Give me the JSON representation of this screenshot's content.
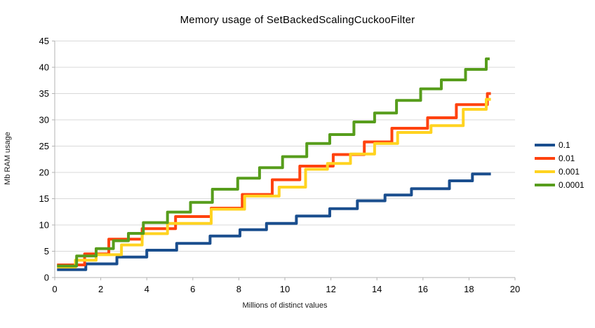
{
  "title": "Memory usage of SetBackedScalingCuckooFilter",
  "chart_data": {
    "type": "line",
    "line_style": "step",
    "title": "Memory usage of SetBackedScalingCuckooFilter",
    "xlabel": "Millions of distinct values",
    "ylabel": "Mb RAM usage",
    "xlim": [
      0,
      20
    ],
    "ylim": [
      0,
      45
    ],
    "xticks": [
      0,
      2,
      4,
      6,
      8,
      10,
      12,
      14,
      16,
      18,
      20
    ],
    "yticks": [
      0,
      5,
      10,
      15,
      20,
      25,
      30,
      35,
      40,
      45
    ],
    "grid": "horizontal",
    "grid_color": "#d9d9d9",
    "axis_color": "#b3b3b3",
    "legend_position": "right",
    "series": [
      {
        "name": "0.1",
        "color": "#1a4e8e",
        "x_end": 18.95,
        "points": [
          [
            0.1,
            1.5
          ],
          [
            1.35,
            2.6
          ],
          [
            2.7,
            3.9
          ],
          [
            4.0,
            5.2
          ],
          [
            5.3,
            6.5
          ],
          [
            6.75,
            7.9
          ],
          [
            8.05,
            9.1
          ],
          [
            9.2,
            10.3
          ],
          [
            10.5,
            11.7
          ],
          [
            11.95,
            13.1
          ],
          [
            13.15,
            14.6
          ],
          [
            14.35,
            15.7
          ],
          [
            15.5,
            16.9
          ],
          [
            17.15,
            18.4
          ],
          [
            18.15,
            19.7
          ]
        ]
      },
      {
        "name": "0.01",
        "color": "#ff420e",
        "x_end": 18.95,
        "points": [
          [
            0.1,
            2.4
          ],
          [
            1.3,
            4.5
          ],
          [
            2.35,
            7.3
          ],
          [
            3.8,
            9.3
          ],
          [
            5.25,
            11.6
          ],
          [
            6.8,
            13.2
          ],
          [
            8.15,
            15.8
          ],
          [
            9.45,
            18.6
          ],
          [
            10.65,
            21.2
          ],
          [
            12.1,
            23.4
          ],
          [
            13.45,
            25.8
          ],
          [
            14.65,
            28.4
          ],
          [
            16.2,
            30.4
          ],
          [
            17.45,
            32.9
          ],
          [
            18.8,
            35.0
          ]
        ]
      },
      {
        "name": "0.001",
        "color": "#ffd320",
        "x_end": 18.95,
        "points": [
          [
            0.1,
            2.0
          ],
          [
            0.9,
            3.3
          ],
          [
            1.8,
            4.35
          ],
          [
            2.9,
            6.2
          ],
          [
            3.8,
            8.35
          ],
          [
            4.9,
            10.3
          ],
          [
            6.8,
            13.0
          ],
          [
            8.25,
            15.5
          ],
          [
            9.75,
            17.2
          ],
          [
            10.9,
            20.6
          ],
          [
            11.85,
            21.7
          ],
          [
            12.85,
            23.5
          ],
          [
            13.9,
            25.5
          ],
          [
            14.9,
            27.6
          ],
          [
            16.35,
            28.9
          ],
          [
            17.75,
            32.0
          ],
          [
            18.75,
            33.9
          ]
        ]
      },
      {
        "name": "0.0001",
        "color": "#579d1c",
        "x_end": 18.9,
        "points": [
          [
            0.1,
            2.2
          ],
          [
            0.95,
            4.1
          ],
          [
            1.8,
            5.5
          ],
          [
            2.55,
            7.0
          ],
          [
            3.2,
            8.4
          ],
          [
            3.85,
            10.45
          ],
          [
            4.9,
            12.45
          ],
          [
            5.9,
            14.3
          ],
          [
            6.85,
            16.8
          ],
          [
            7.95,
            18.9
          ],
          [
            8.9,
            20.9
          ],
          [
            9.9,
            23.0
          ],
          [
            10.95,
            25.5
          ],
          [
            11.95,
            27.2
          ],
          [
            13.0,
            29.6
          ],
          [
            13.9,
            31.3
          ],
          [
            14.85,
            33.7
          ],
          [
            15.9,
            35.9
          ],
          [
            16.8,
            37.6
          ],
          [
            17.85,
            39.6
          ],
          [
            18.75,
            41.6
          ]
        ]
      }
    ]
  }
}
